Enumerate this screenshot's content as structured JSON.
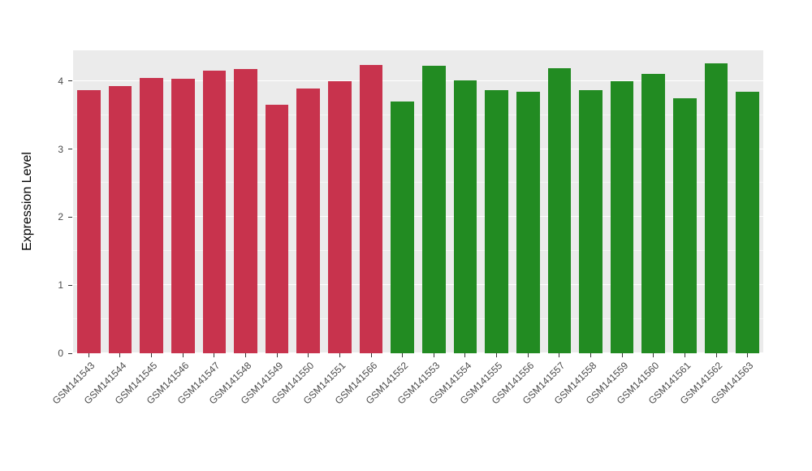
{
  "chart_data": {
    "type": "bar",
    "title": "",
    "xlabel": "",
    "ylabel": "Expression Level",
    "categories": [
      "GSM141543",
      "GSM141544",
      "GSM141545",
      "GSM141546",
      "GSM141547",
      "GSM141548",
      "GSM141549",
      "GSM141550",
      "GSM141551",
      "GSM141566",
      "GSM141552",
      "GSM141553",
      "GSM141554",
      "GSM141555",
      "GSM141556",
      "GSM141557",
      "GSM141558",
      "GSM141559",
      "GSM141560",
      "GSM141561",
      "GSM141562",
      "GSM141563"
    ],
    "values": [
      3.86,
      3.93,
      4.04,
      4.03,
      4.15,
      4.17,
      3.65,
      3.89,
      4.0,
      4.24,
      3.7,
      4.22,
      4.01,
      3.87,
      3.84,
      4.19,
      3.86,
      4.0,
      4.11,
      3.75,
      4.26,
      3.84
    ],
    "bar_colors": [
      "#C8334D",
      "#C8334D",
      "#C8334D",
      "#C8334D",
      "#C8334D",
      "#C8334D",
      "#C8334D",
      "#C8334D",
      "#C8334D",
      "#C8334D",
      "#228B22",
      "#228B22",
      "#228B22",
      "#228B22",
      "#228B22",
      "#228B22",
      "#228B22",
      "#228B22",
      "#228B22",
      "#228B22",
      "#228B22",
      "#228B22"
    ],
    "groups": [
      {
        "name": "red-group",
        "color": "#C8334D",
        "categories": [
          "GSM141543",
          "GSM141544",
          "GSM141545",
          "GSM141546",
          "GSM141547",
          "GSM141548",
          "GSM141549",
          "GSM141550",
          "GSM141551",
          "GSM141566"
        ]
      },
      {
        "name": "green-group",
        "color": "#228B22",
        "categories": [
          "GSM141552",
          "GSM141553",
          "GSM141554",
          "GSM141555",
          "GSM141556",
          "GSM141557",
          "GSM141558",
          "GSM141559",
          "GSM141560",
          "GSM141561",
          "GSM141562",
          "GSM141563"
        ]
      }
    ],
    "ylim": [
      0,
      4.45
    ],
    "yticks": [
      0,
      1,
      2,
      3,
      4
    ],
    "yticks_minor": [
      0.5,
      1.5,
      2.5,
      3.5
    ],
    "grid": "on",
    "legend": "none",
    "panel_background": "#EBEBEB",
    "grid_color": "#FFFFFF",
    "figure_background": "#FFFFFF"
  }
}
